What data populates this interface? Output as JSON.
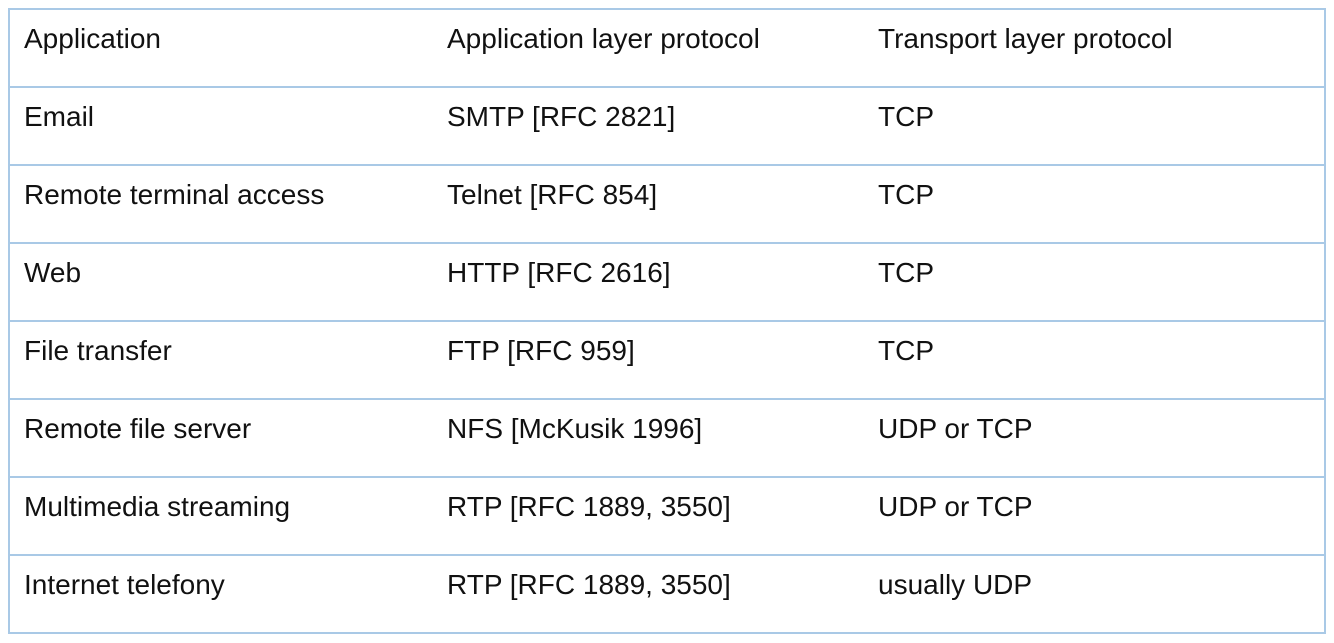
{
  "table": {
    "header": [
      "Application",
      "Application layer protocol",
      "Transport layer protocol"
    ],
    "rows": [
      [
        "Email",
        "SMTP [RFC 2821]",
        "TCP"
      ],
      [
        "Remote terminal access",
        "Telnet [RFC 854]",
        "TCP"
      ],
      [
        "Web",
        "HTTP [RFC 2616]",
        "TCP"
      ],
      [
        "File transfer",
        "FTP [RFC 959]",
        "TCP"
      ],
      [
        "Remote file server",
        "NFS [McKusik 1996]",
        "UDP or TCP"
      ],
      [
        "Multimedia streaming",
        "RTP [RFC 1889, 3550]",
        "UDP or TCP"
      ],
      [
        "Internet telefony",
        "RTP [RFC 1889, 3550]",
        "usually UDP"
      ]
    ]
  }
}
